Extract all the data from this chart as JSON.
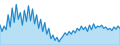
{
  "values": [
    72,
    58,
    70,
    62,
    95,
    68,
    110,
    78,
    118,
    85,
    100,
    72,
    105,
    80,
    115,
    82,
    108,
    75,
    95,
    65,
    85,
    58,
    78,
    52,
    65,
    42,
    50,
    38,
    45,
    35,
    42,
    48,
    55,
    50,
    58,
    52,
    60,
    55,
    65,
    60,
    70,
    62,
    68,
    58,
    72,
    62,
    75,
    65,
    70,
    68,
    72,
    65,
    68,
    62,
    65,
    60,
    68,
    63,
    70,
    65
  ],
  "line_color": "#2288cc",
  "fill_color": "#88ccee",
  "background_color": "#ffffff",
  "ylim_min": 28,
  "ylim_max": 128
}
